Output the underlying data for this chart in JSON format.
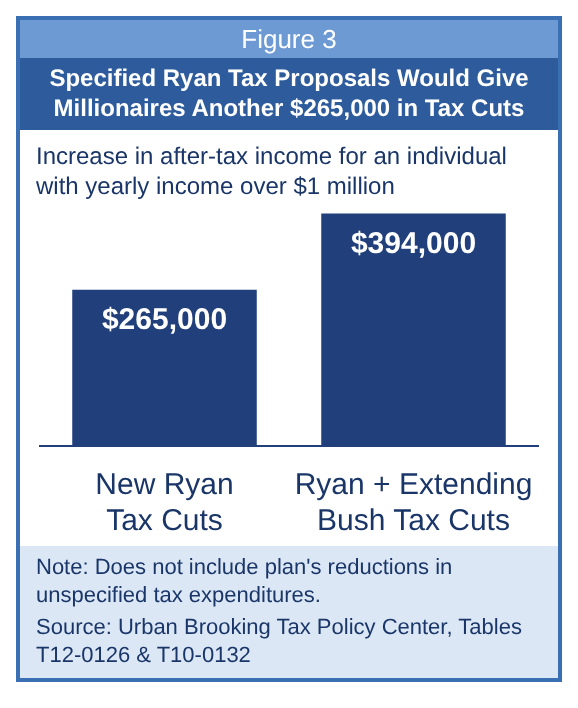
{
  "chart_data": {
    "type": "bar",
    "title": "Figure 3",
    "subtitle": "Specified Ryan Tax Proposals Would Give Millionaires Another $265,000 in Tax Cuts",
    "ylabel": "Increase in after-tax income for an individual with yearly income over $1 million",
    "categories": [
      "New Ryan\nTax Cuts",
      "Ryan + Extending\nBush Tax Cuts"
    ],
    "values": [
      265000,
      394000
    ],
    "value_labels": [
      "$265,000",
      "$394,000"
    ],
    "color": "#213f7b",
    "annotations": [
      "Note: Does not include plan's reductions in unspecified tax expenditures.",
      "Source: Urban Brooking Tax Policy Center, Tables T12-0126 & T10-0132"
    ]
  }
}
